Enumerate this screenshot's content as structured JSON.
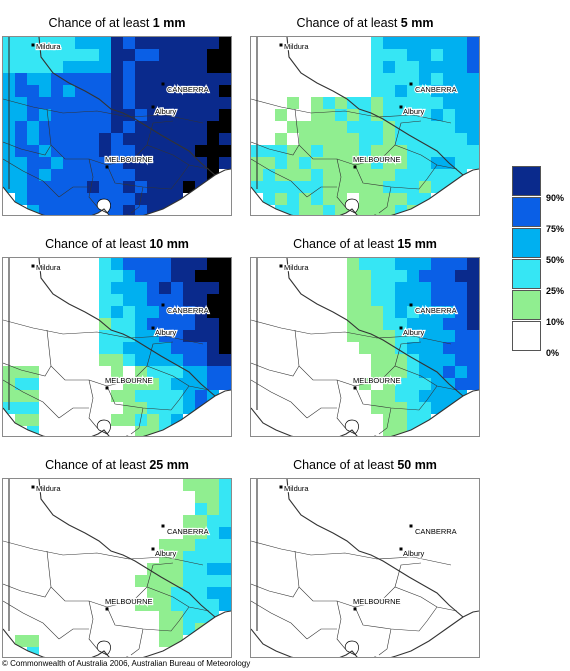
{
  "panels": [
    {
      "prefix": "Chance of at least ",
      "amount": "1 mm",
      "level": 1
    },
    {
      "prefix": "Chance of at least ",
      "amount": "5 mm",
      "level": 2
    },
    {
      "prefix": "Chance of at least ",
      "amount": "10 mm",
      "level": 3
    },
    {
      "prefix": "Chance of at least ",
      "amount": "15 mm",
      "level": 4
    },
    {
      "prefix": "Chance of at least ",
      "amount": "25 mm",
      "level": 5
    },
    {
      "prefix": "Chance of at least ",
      "amount": "50 mm",
      "level": 6
    }
  ],
  "places": {
    "mildura": "Mildura",
    "canberra": "CANBERRA",
    "albury": "Albury",
    "melbourne": "MELBOURNE"
  },
  "legend": {
    "labels": [
      "90%",
      "75%",
      "50%",
      "25%",
      "10%",
      "0%"
    ],
    "colors": [
      "#0a2a8c",
      "#0a5fe6",
      "#00b0f0",
      "#36e6f4",
      "#90ee90",
      "#ffffff"
    ]
  },
  "footer": "© Commonwealth of Australia 2006, Australian Bureau of Meteorology"
}
